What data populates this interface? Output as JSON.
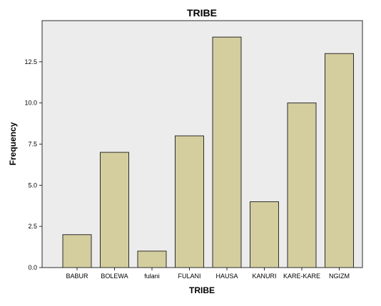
{
  "chart_data": {
    "type": "bar",
    "title": "TRIBE",
    "xlabel": "TRIBE",
    "ylabel": "Frequency",
    "categories": [
      "BABUR",
      "BOLEWA",
      "fulani",
      "FULANI",
      "HAUSA",
      "KANURI",
      "KARE-KARE",
      "NGIZM"
    ],
    "values": [
      2,
      7,
      1,
      8,
      14,
      4,
      10,
      13
    ],
    "ylim": [
      0,
      15
    ],
    "yticks": [
      "0.0",
      "2.5",
      "5.0",
      "7.5",
      "10.0",
      "12.5"
    ],
    "grid": false,
    "legend": "none",
    "colors": {
      "bar_fill": "#d4ce9f",
      "bar_stroke": "#2b2b2b",
      "plot_background": "#ececec",
      "plot_border": "#2b2b2b",
      "text": "#000000"
    }
  }
}
